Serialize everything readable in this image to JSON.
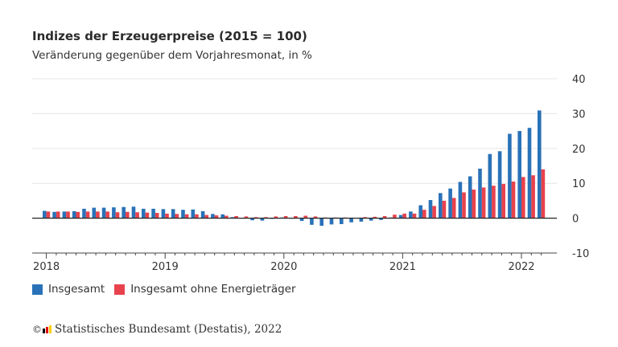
{
  "title": "Indizes der Erzeugerpreise (2015 = 100)",
  "subtitle": "Veränderung gegenüber dem Vorjahresmonat, in %",
  "source": "Statistisches Bundesamt (Destatis), 2022",
  "copyright_symbol": "©",
  "logo_colors": [
    "#000000",
    "#dd0000",
    "#ffcc00"
  ],
  "colors": {
    "series1": "#2a72b8",
    "series2": "#e8424d",
    "grid": "#e6e6e6",
    "zero_line": "#222222"
  },
  "chart_data": {
    "type": "bar",
    "categories": [
      "2018-01",
      "2018-02",
      "2018-03",
      "2018-04",
      "2018-05",
      "2018-06",
      "2018-07",
      "2018-08",
      "2018-09",
      "2018-10",
      "2018-11",
      "2018-12",
      "2019-01",
      "2019-02",
      "2019-03",
      "2019-04",
      "2019-05",
      "2019-06",
      "2019-07",
      "2019-08",
      "2019-09",
      "2019-10",
      "2019-11",
      "2019-12",
      "2020-01",
      "2020-02",
      "2020-03",
      "2020-04",
      "2020-05",
      "2020-06",
      "2020-07",
      "2020-08",
      "2020-09",
      "2020-10",
      "2020-11",
      "2020-12",
      "2021-01",
      "2021-02",
      "2021-03",
      "2021-04",
      "2021-05",
      "2021-06",
      "2021-07",
      "2021-08",
      "2021-09",
      "2021-10",
      "2021-11",
      "2021-12",
      "2022-01",
      "2022-02",
      "2022-03"
    ],
    "series": [
      {
        "name": "Insgesamt",
        "values": [
          2.1,
          1.8,
          1.9,
          2.0,
          2.7,
          3.0,
          3.0,
          3.1,
          3.2,
          3.3,
          2.7,
          2.7,
          2.6,
          2.6,
          2.4,
          2.5,
          2.0,
          1.2,
          1.1,
          0.3,
          -0.1,
          -0.6,
          -0.7,
          -0.2,
          0.2,
          -0.1,
          -0.8,
          -1.9,
          -2.2,
          -1.8,
          -1.7,
          -1.2,
          -1.0,
          -0.7,
          -0.5,
          0.2,
          0.9,
          1.9,
          3.7,
          5.2,
          7.2,
          8.5,
          10.4,
          12.0,
          14.2,
          18.4,
          19.2,
          24.2,
          25.0,
          25.9,
          30.9
        ]
      },
      {
        "name": "Insgesamt ohne Energieträger",
        "values": [
          1.9,
          1.9,
          1.9,
          1.8,
          1.9,
          1.9,
          1.9,
          1.7,
          1.8,
          1.7,
          1.6,
          1.5,
          1.3,
          1.2,
          1.1,
          1.1,
          0.9,
          0.8,
          0.7,
          0.6,
          0.5,
          0.3,
          0.3,
          0.5,
          0.6,
          0.6,
          0.7,
          0.5,
          0.2,
          0.2,
          0.2,
          0.1,
          0.3,
          0.4,
          0.6,
          1.0,
          1.3,
          1.3,
          2.4,
          3.5,
          5.0,
          5.8,
          7.4,
          8.2,
          8.8,
          9.3,
          9.8,
          10.5,
          11.8,
          12.3,
          14.0
        ]
      }
    ],
    "x_tick_labels": [
      "2018",
      "2019",
      "2020",
      "2021",
      "2022"
    ],
    "y_ticks": [
      40,
      30,
      20,
      10,
      0,
      -10
    ],
    "ylim": [
      -10,
      40
    ],
    "y_axis_position": "right",
    "grid": true,
    "legend_position": "bottom-left"
  }
}
